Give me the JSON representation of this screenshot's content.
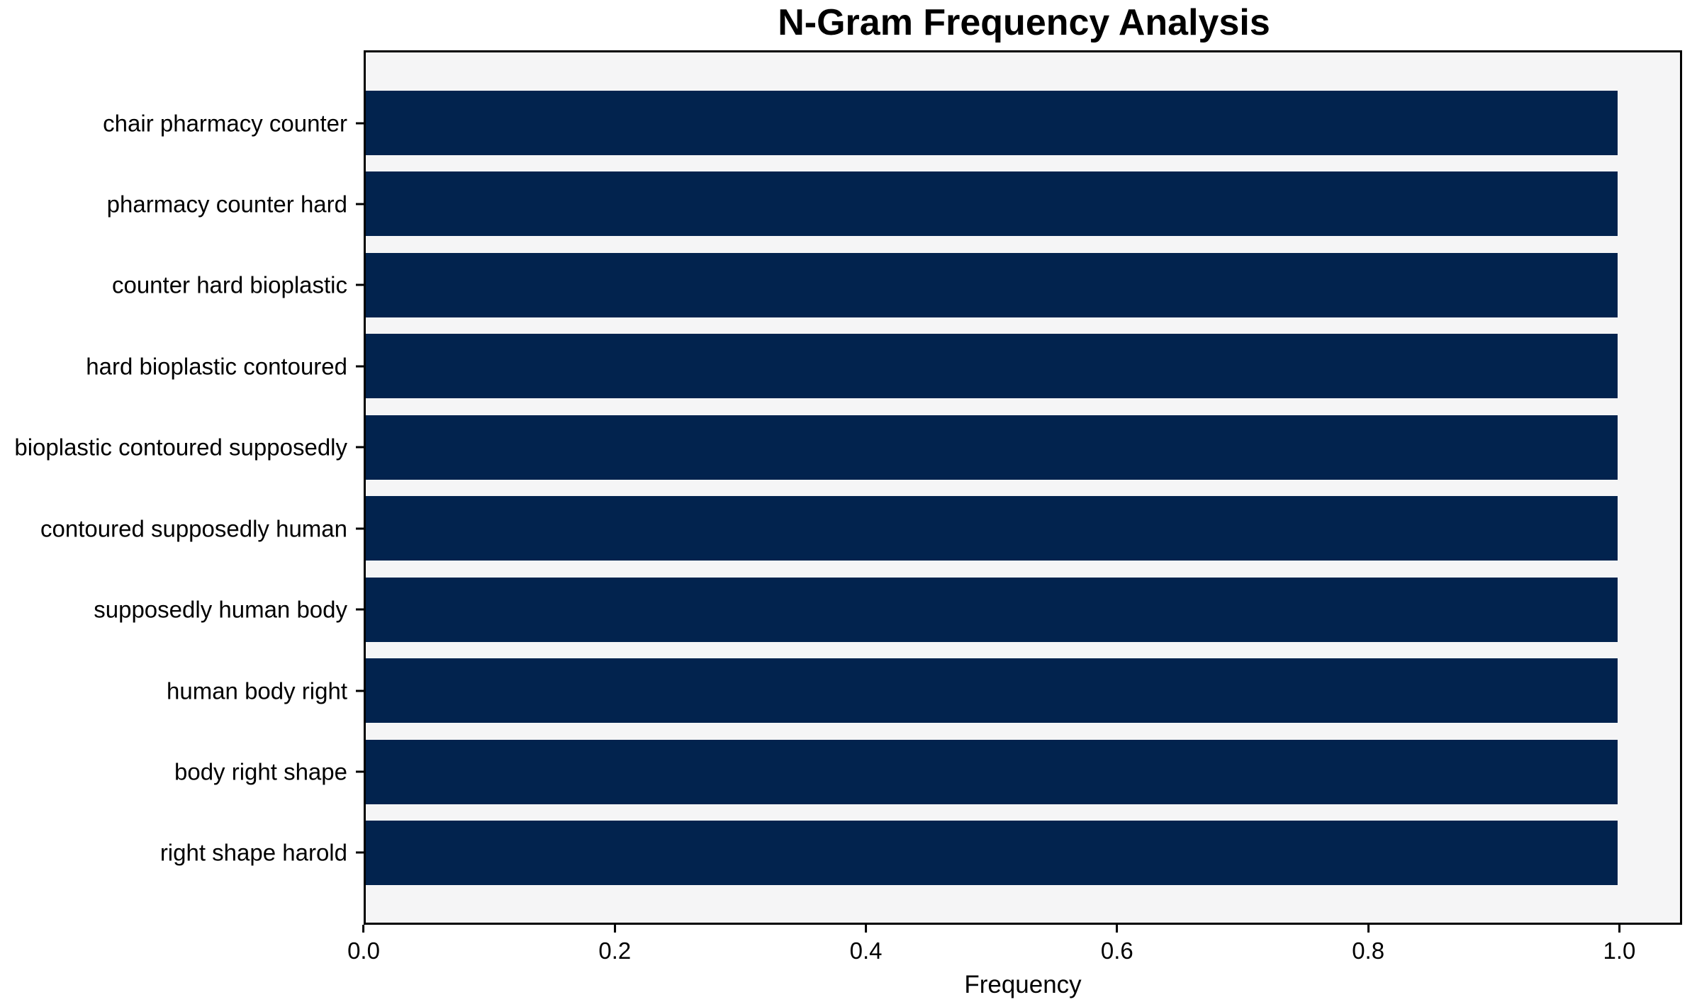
{
  "chart_data": {
    "type": "bar",
    "orientation": "horizontal",
    "title": "N-Gram Frequency Analysis",
    "xlabel": "Frequency",
    "ylabel": "",
    "categories": [
      "chair pharmacy counter",
      "pharmacy counter hard",
      "counter hard bioplastic",
      "hard bioplastic contoured",
      "bioplastic contoured supposedly",
      "contoured supposedly human",
      "supposedly human body",
      "human body right",
      "body right shape",
      "right shape harold"
    ],
    "values": [
      1.0,
      1.0,
      1.0,
      1.0,
      1.0,
      1.0,
      1.0,
      1.0,
      1.0,
      1.0
    ],
    "xlim": [
      0,
      1.05
    ],
    "xticks": [
      0.0,
      0.2,
      0.4,
      0.6,
      0.8,
      1.0
    ],
    "xtick_labels": [
      "0.0",
      "0.2",
      "0.4",
      "0.6",
      "0.8",
      "1.0"
    ],
    "grid": false,
    "legend": "none",
    "colors": {
      "bar": "#02234e",
      "plot_background": "#f5f5f6",
      "figure_background": "#ffffff",
      "spine": "#000000",
      "text": "#000000"
    }
  }
}
